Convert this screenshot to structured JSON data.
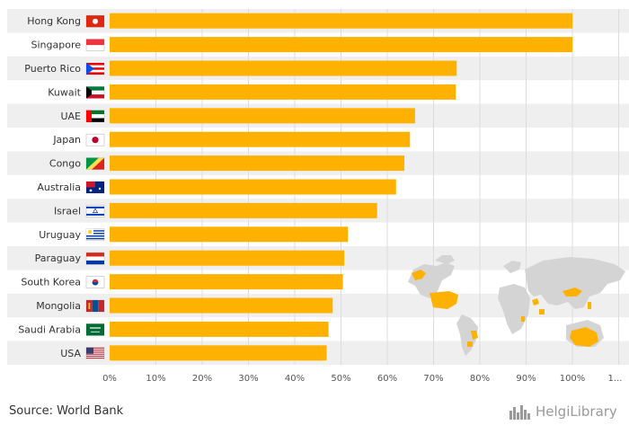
{
  "chart_data": {
    "type": "bar",
    "orientation": "horizontal",
    "categories": [
      "Hong Kong",
      "Singapore",
      "Puerto Rico",
      "Kuwait",
      "UAE",
      "Japan",
      "Congo",
      "Australia",
      "Israel",
      "Uruguay",
      "Paraguay",
      "South Korea",
      "Mongolia",
      "Saudi Arabia",
      "USA"
    ],
    "values": [
      100,
      100,
      75,
      74.8,
      66,
      64.9,
      63.7,
      61.9,
      57.8,
      51.5,
      50.7,
      50.4,
      48.2,
      47.3,
      46.9
    ],
    "xlim": [
      0,
      110
    ],
    "x_ticks": [
      "0%",
      "10%",
      "20%",
      "30%",
      "40%",
      "50%",
      "60%",
      "70%",
      "80%",
      "90%",
      "100%",
      "1..."
    ],
    "grid": true,
    "bar_color": "#FFB100",
    "row_band_color": "#EFEFEF"
  },
  "flags": [
    "hong-kong-flag-icon",
    "singapore-flag-icon",
    "puerto-rico-flag-icon",
    "kuwait-flag-icon",
    "uae-flag-icon",
    "japan-flag-icon",
    "congo-flag-icon",
    "australia-flag-icon",
    "israel-flag-icon",
    "uruguay-flag-icon",
    "paraguay-flag-icon",
    "south-korea-flag-icon",
    "mongolia-flag-icon",
    "saudi-arabia-flag-icon",
    "usa-flag-icon"
  ],
  "map_icon": "world-map-icon",
  "footer": {
    "source": "Source: World Bank",
    "brand": "HelgiLibrary"
  }
}
